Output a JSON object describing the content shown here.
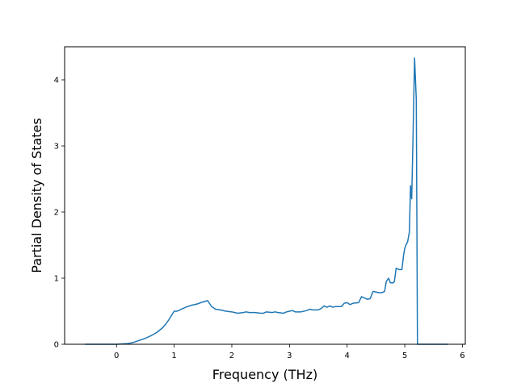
{
  "chart_data": {
    "type": "line",
    "xlabel": "Frequency (THz)",
    "ylabel": "Partial Density of States",
    "xlim": [
      -0.9,
      6.05
    ],
    "ylim": [
      0,
      4.5
    ],
    "xticks": [
      0,
      1,
      2,
      3,
      4,
      5,
      6
    ],
    "yticks": [
      0,
      1,
      2,
      3,
      4
    ],
    "grid": false,
    "series": [
      {
        "color": "#1f77b4",
        "x": [
          -0.55,
          -0.3,
          0.0,
          0.2,
          0.3,
          0.4,
          0.5,
          0.6,
          0.7,
          0.8,
          0.85,
          0.9,
          0.95,
          1.0,
          1.05,
          1.1,
          1.15,
          1.2,
          1.3,
          1.4,
          1.5,
          1.58,
          1.65,
          1.72,
          1.8,
          1.9,
          2.0,
          2.05,
          2.1,
          2.2,
          2.25,
          2.3,
          2.4,
          2.5,
          2.55,
          2.6,
          2.7,
          2.75,
          2.8,
          2.9,
          2.95,
          3.0,
          3.05,
          3.1,
          3.2,
          3.3,
          3.35,
          3.4,
          3.45,
          3.5,
          3.55,
          3.6,
          3.65,
          3.7,
          3.75,
          3.8,
          3.9,
          3.95,
          4.0,
          4.05,
          4.1,
          4.2,
          4.25,
          4.3,
          4.35,
          4.4,
          4.45,
          4.5,
          4.55,
          4.6,
          4.65,
          4.68,
          4.72,
          4.75,
          4.8,
          4.82,
          4.85,
          4.9,
          4.95,
          4.98,
          5.0,
          5.02,
          5.05,
          5.08,
          5.1,
          5.12,
          5.14,
          5.17,
          5.2,
          5.22,
          5.3,
          5.5,
          5.75
        ],
        "y": [
          0.0,
          0.0,
          0.0,
          0.01,
          0.03,
          0.06,
          0.09,
          0.13,
          0.18,
          0.25,
          0.3,
          0.36,
          0.43,
          0.5,
          0.5,
          0.52,
          0.54,
          0.56,
          0.59,
          0.61,
          0.64,
          0.66,
          0.57,
          0.53,
          0.52,
          0.5,
          0.49,
          0.48,
          0.47,
          0.48,
          0.49,
          0.48,
          0.48,
          0.47,
          0.47,
          0.49,
          0.48,
          0.49,
          0.48,
          0.47,
          0.49,
          0.5,
          0.51,
          0.49,
          0.49,
          0.51,
          0.53,
          0.52,
          0.52,
          0.52,
          0.54,
          0.58,
          0.56,
          0.58,
          0.56,
          0.57,
          0.57,
          0.62,
          0.63,
          0.6,
          0.62,
          0.63,
          0.72,
          0.7,
          0.68,
          0.69,
          0.8,
          0.79,
          0.78,
          0.78,
          0.8,
          0.95,
          1.0,
          0.93,
          0.93,
          0.95,
          1.15,
          1.13,
          1.13,
          1.35,
          1.45,
          1.5,
          1.55,
          1.7,
          2.4,
          2.2,
          3.0,
          4.33,
          3.7,
          0.0,
          0.0,
          0.0,
          0.0
        ]
      }
    ]
  }
}
